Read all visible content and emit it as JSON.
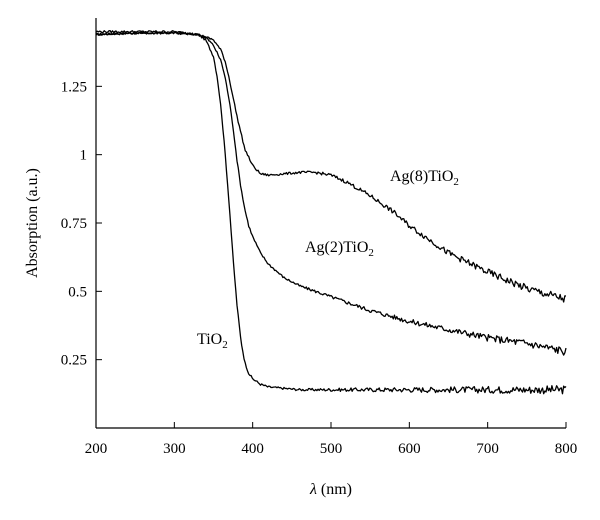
{
  "chart_data": {
    "type": "line",
    "title": "",
    "xlabel": {
      "symbol": "λ",
      "unit": " (nm)"
    },
    "ylabel": "Absorption (a.u.)",
    "xlim": [
      200,
      800
    ],
    "ylim": [
      0,
      1.5
    ],
    "xticks": [
      200,
      300,
      400,
      500,
      600,
      700,
      800
    ],
    "yticks": [
      0.25,
      0.5,
      0.75,
      1,
      1.25
    ],
    "ytick_labels": [
      "0.25",
      "0.5",
      "0.75",
      "1",
      "1.25"
    ],
    "grid": false,
    "legend": "none",
    "line_color": "#000000",
    "series": [
      {
        "id": "tio2",
        "label": {
          "main": "TiO",
          "sub": "2"
        },
        "x": [
          200,
          250,
          300,
          330,
          340,
          350,
          355,
          360,
          365,
          370,
          375,
          380,
          385,
          390,
          395,
          400,
          410,
          420,
          440,
          460,
          500,
          550,
          600,
          650,
          700,
          750,
          800
        ],
        "y": [
          1.44,
          1.445,
          1.445,
          1.44,
          1.42,
          1.36,
          1.28,
          1.16,
          1.0,
          0.82,
          0.62,
          0.45,
          0.32,
          0.24,
          0.2,
          0.18,
          0.16,
          0.15,
          0.145,
          0.14,
          0.14,
          0.14,
          0.14,
          0.14,
          0.14,
          0.14,
          0.14
        ]
      },
      {
        "id": "ag2tio2",
        "label": {
          "main": "Ag(2)TiO",
          "sub": "2"
        },
        "x": [
          200,
          250,
          300,
          330,
          340,
          350,
          360,
          365,
          370,
          375,
          380,
          385,
          390,
          395,
          400,
          410,
          420,
          440,
          460,
          500,
          550,
          600,
          650,
          700,
          750,
          800
        ],
        "y": [
          1.44,
          1.445,
          1.445,
          1.44,
          1.43,
          1.4,
          1.34,
          1.28,
          1.2,
          1.1,
          0.98,
          0.88,
          0.8,
          0.74,
          0.7,
          0.64,
          0.6,
          0.55,
          0.52,
          0.48,
          0.43,
          0.39,
          0.36,
          0.33,
          0.31,
          0.28
        ]
      },
      {
        "id": "ag8tio2",
        "label": {
          "main": "Ag(8)TiO",
          "sub": "2"
        },
        "x": [
          200,
          250,
          300,
          330,
          340,
          350,
          360,
          365,
          370,
          375,
          380,
          385,
          390,
          395,
          400,
          410,
          420,
          440,
          460,
          480,
          500,
          520,
          550,
          580,
          600,
          650,
          700,
          750,
          800
        ],
        "y": [
          1.45,
          1.45,
          1.45,
          1.44,
          1.43,
          1.42,
          1.38,
          1.34,
          1.28,
          1.21,
          1.14,
          1.08,
          1.02,
          0.99,
          0.96,
          0.93,
          0.925,
          0.93,
          0.935,
          0.935,
          0.925,
          0.9,
          0.85,
          0.79,
          0.74,
          0.64,
          0.57,
          0.51,
          0.47
        ]
      }
    ]
  }
}
